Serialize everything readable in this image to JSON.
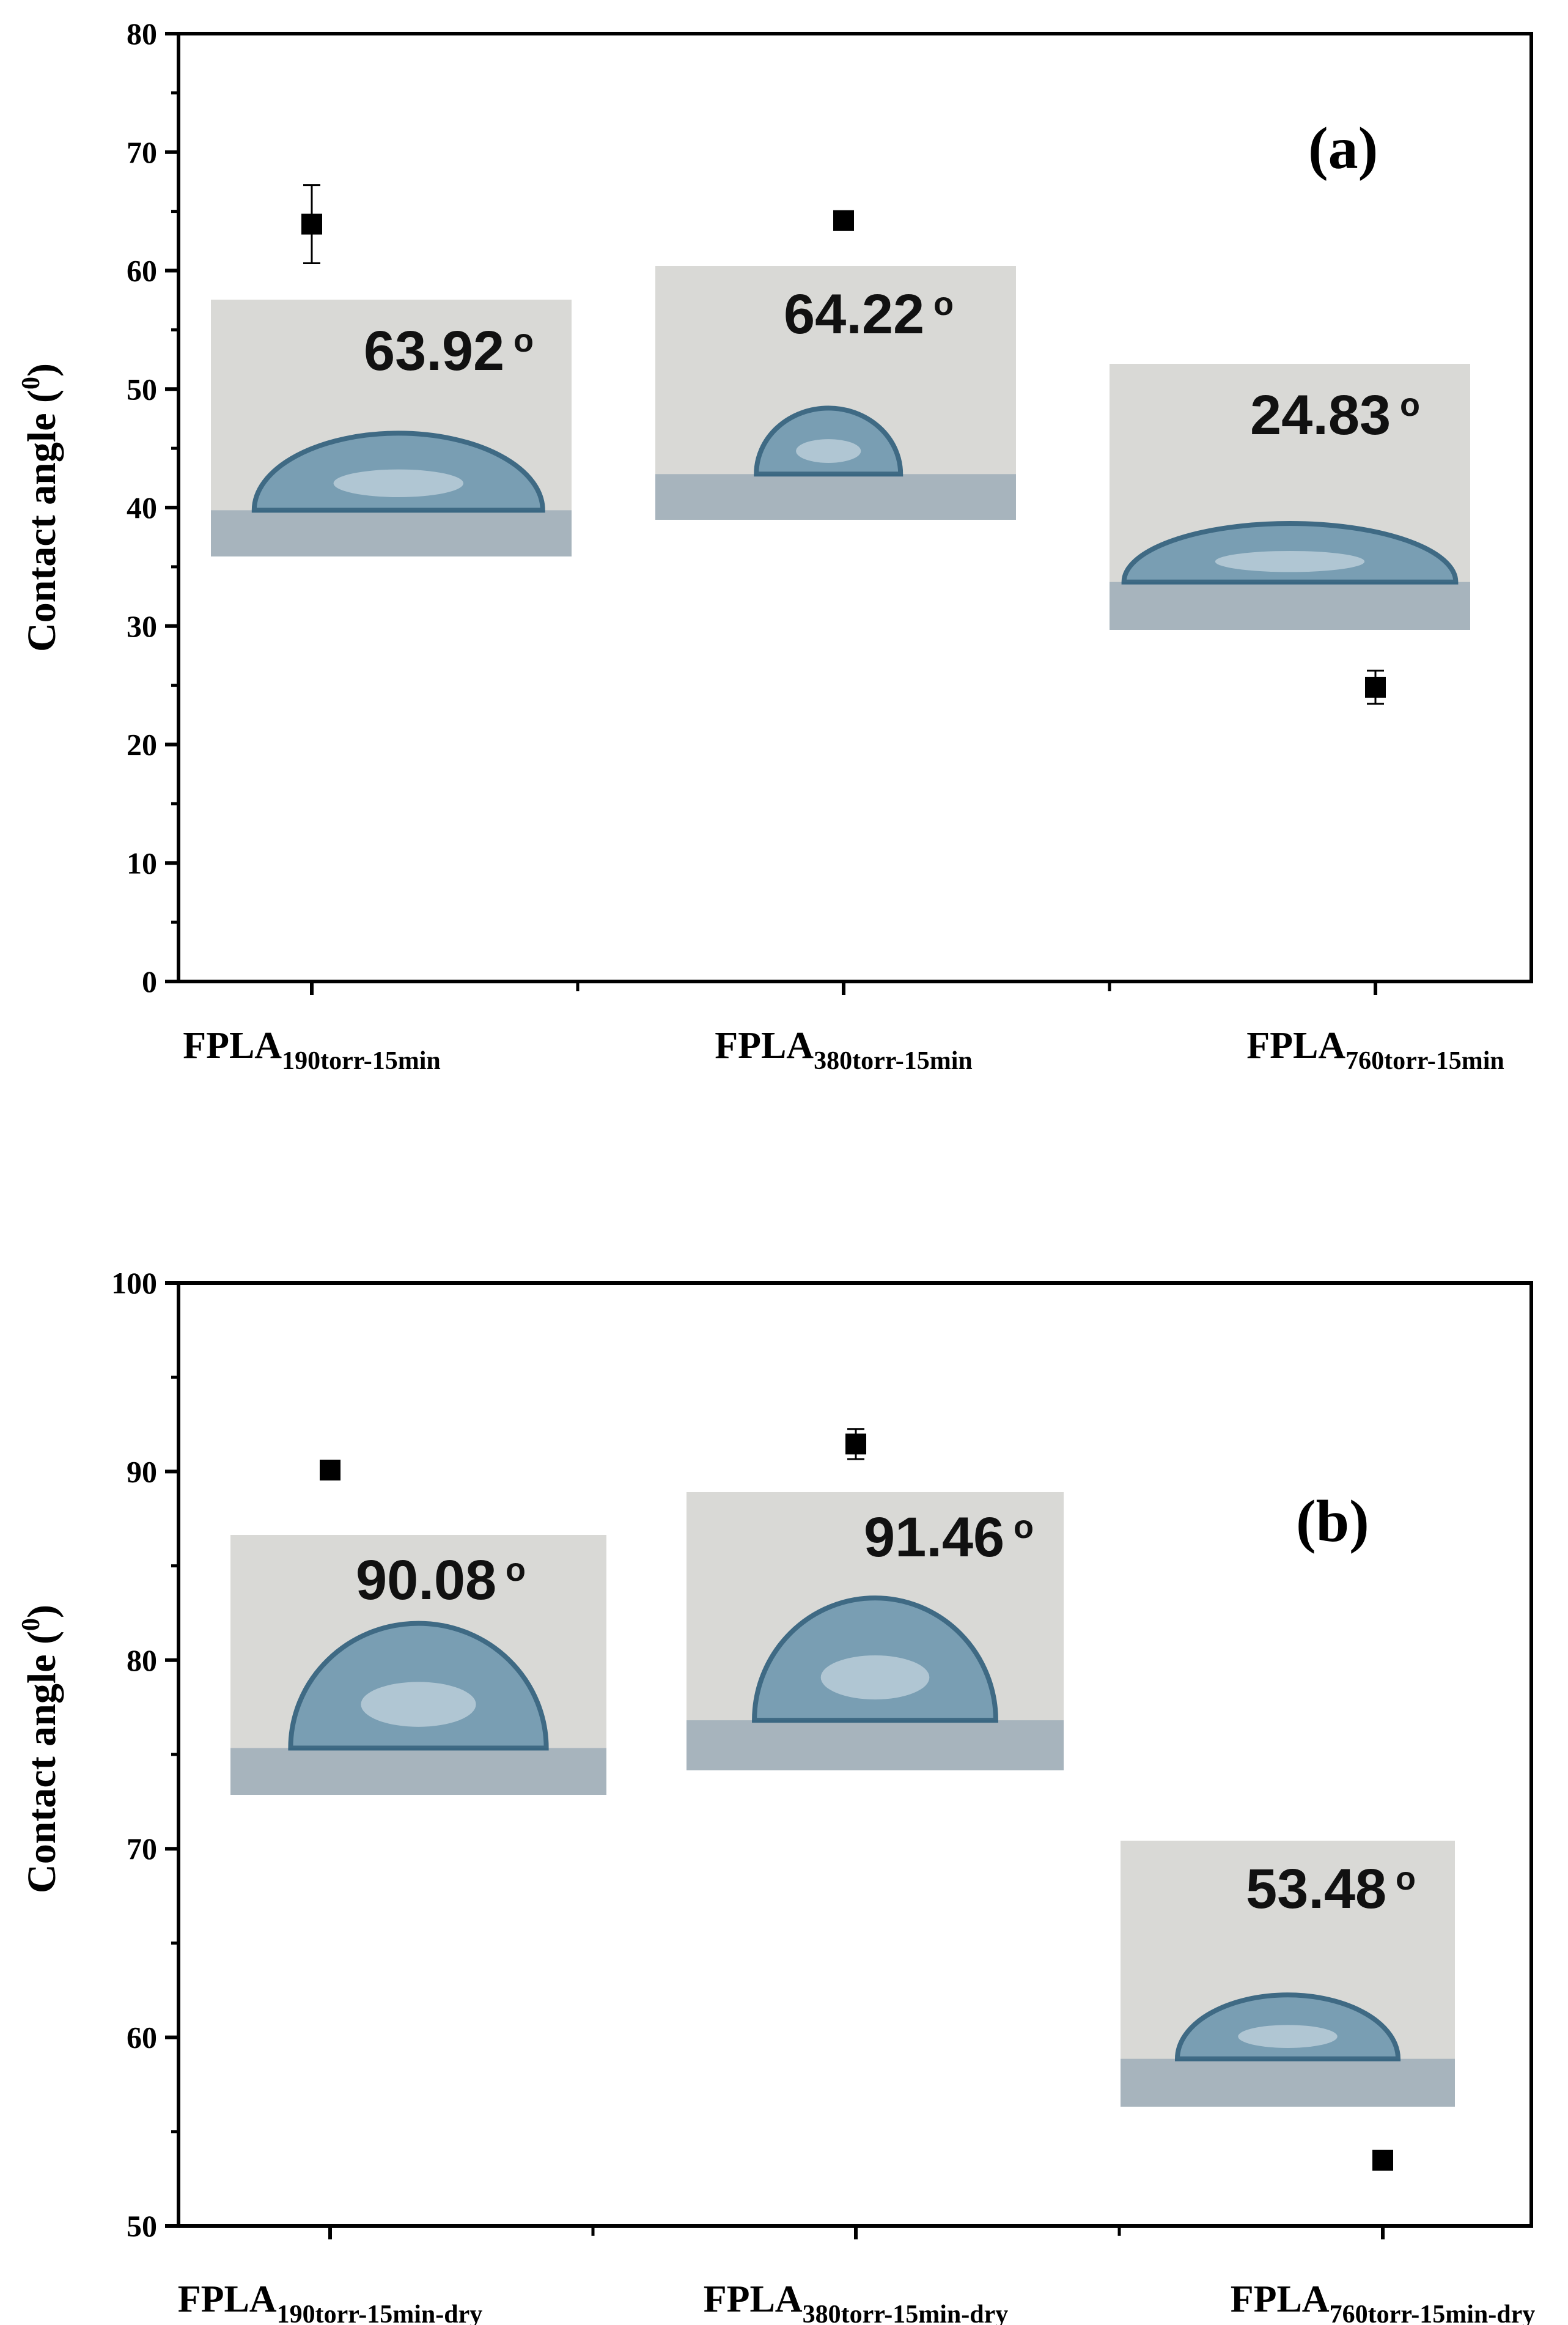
{
  "colors": {
    "frame": "#000000",
    "marker": "#000000",
    "inset_bg": "#d9d9d6",
    "inset_surface": "#a7b4bd",
    "droplet": "#6f98b0",
    "droplet_edge": "#2f5f7c"
  },
  "chart_data": [
    {
      "type": "scatter",
      "panel_label": "(a)",
      "ylabel": "Contact angle (°)",
      "ylabel_main": "Contact angle (",
      "ylabel_sup": "0",
      "ylabel_end": ")",
      "ylim": [
        0,
        80
      ],
      "yticks": [
        "0",
        "10",
        "20",
        "30",
        "40",
        "50",
        "60",
        "70",
        "80"
      ],
      "categories": [
        {
          "base": "FPLA",
          "sub": "190torr-15min"
        },
        {
          "base": "FPLA",
          "sub": "380torr-15min"
        },
        {
          "base": "FPLA",
          "sub": "760torr-15min"
        }
      ],
      "series": [
        {
          "name": "Contact angle",
          "values": [
            63.92,
            64.22,
            24.83
          ],
          "errors": [
            3.3,
            0.5,
            1.4
          ]
        }
      ],
      "insets": [
        {
          "value_text": "63.92",
          "degree": "o",
          "icon": "droplet-photo"
        },
        {
          "value_text": "64.22",
          "degree": "o",
          "icon": "droplet-photo"
        },
        {
          "value_text": "24.83",
          "degree": "o",
          "icon": "droplet-photo"
        }
      ]
    },
    {
      "type": "scatter",
      "panel_label": "(b)",
      "ylabel": "Contact angle (°)",
      "ylabel_main": "Contact angle (",
      "ylabel_sup": "0",
      "ylabel_end": ")",
      "ylim": [
        50,
        100
      ],
      "yticks": [
        "50",
        "60",
        "70",
        "80",
        "90",
        "100"
      ],
      "categories": [
        {
          "base": "FPLA",
          "sub": "190torr-15min-dry"
        },
        {
          "base": "FPLA",
          "sub": "380torr-15min-dry"
        },
        {
          "base": "FPLA",
          "sub": "760torr-15min-dry"
        }
      ],
      "series": [
        {
          "name": "Contact angle",
          "values": [
            90.08,
            91.46,
            53.48
          ],
          "errors": [
            0.3,
            0.8,
            0.3
          ]
        }
      ],
      "insets": [
        {
          "value_text": "90.08",
          "degree": "o",
          "icon": "droplet-photo"
        },
        {
          "value_text": "91.46",
          "degree": "o",
          "icon": "droplet-photo"
        },
        {
          "value_text": "53.48",
          "degree": "o",
          "icon": "droplet-photo"
        }
      ]
    }
  ]
}
